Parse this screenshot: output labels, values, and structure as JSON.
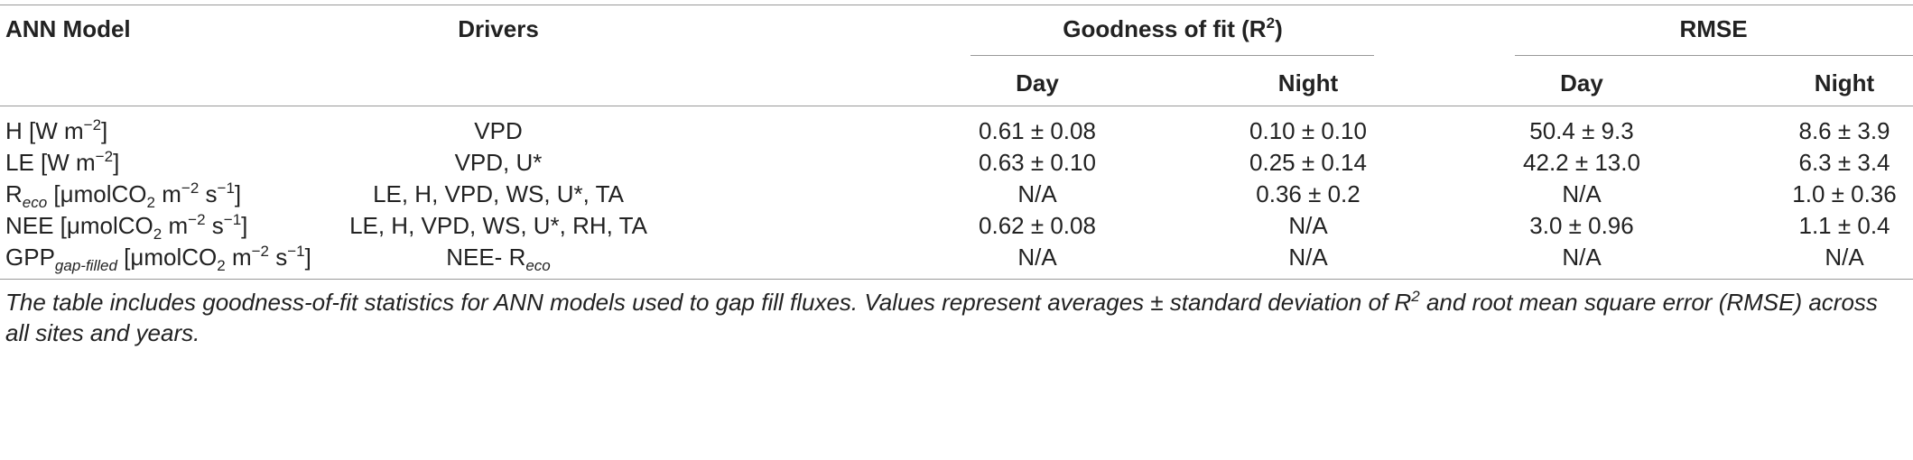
{
  "table": {
    "headers": {
      "model": "ANN Model",
      "drivers": "Drivers",
      "gof": "Goodness of fit (R",
      "gof_sup": "2",
      "gof_close": ")",
      "rmse": "RMSE",
      "day1": "Day",
      "night1": "Night",
      "day2": "Day",
      "night2": "Night"
    },
    "rows": [
      {
        "model_pre": "H [W m",
        "model_sup": "−2",
        "model_post": "]",
        "model_sub": "",
        "model_rest": "",
        "drivers": "VPD",
        "drivers_sub": "",
        "gof_day": "0.61 ± 0.08",
        "gof_night": "0.10 ± 0.10",
        "rmse_day": "50.4 ± 9.3",
        "rmse_night": "8.6 ± 3.9"
      },
      {
        "model_pre": "LE [W m",
        "model_sup": "−2",
        "model_post": "]",
        "drivers": "VPD, U*",
        "drivers_sub": "",
        "gof_day": "0.63 ± 0.10",
        "gof_night": "0.25 ± 0.14",
        "rmse_day": "42.2 ± 13.0",
        "rmse_night": "6.3 ± 3.4"
      },
      {
        "model_pre": "R",
        "model_sub": "eco",
        "model_mid": " [μmolCO",
        "model_sub2": "2",
        "model_mid2": " m",
        "model_sup": "−2",
        "model_mid3": " s",
        "model_sup2": "−1",
        "model_post": "]",
        "drivers": "LE, H, VPD, WS, U*, TA",
        "gof_day": "N/A",
        "gof_night": "0.36 ± 0.2",
        "rmse_day": "N/A",
        "rmse_night": "1.0 ± 0.36"
      },
      {
        "model_pre": "NEE [μmolCO",
        "model_sub2": "2",
        "model_mid2": " m",
        "model_sup": "−2",
        "model_mid3": " s",
        "model_sup2": "−1",
        "model_post": "]",
        "drivers": "LE, H, VPD, WS, U*, RH, TA",
        "gof_day": "0.62 ± 0.08",
        "gof_night": "N/A",
        "rmse_day": "3.0 ± 0.96",
        "rmse_night": "1.1 ± 0.4"
      },
      {
        "model_pre": "GPP",
        "model_sub": "gap-filled",
        "model_mid": " [μmolCO",
        "model_sub2": "2",
        "model_mid2": " m",
        "model_sup": "−2",
        "model_mid3": " s",
        "model_sup2": "−1",
        "model_post": "]",
        "drivers": "NEE- R",
        "drivers_sub": "eco",
        "gof_day": "N/A",
        "gof_night": "N/A",
        "rmse_day": "N/A",
        "rmse_night": "N/A"
      }
    ]
  },
  "caption": {
    "part1": "The table includes goodness-of-fit statistics for ANN models used to gap fill fluxes. Values represent averages ± standard deviation of R",
    "sup": "2",
    "part2": " and root mean square error (RMSE) across all sites and years."
  }
}
